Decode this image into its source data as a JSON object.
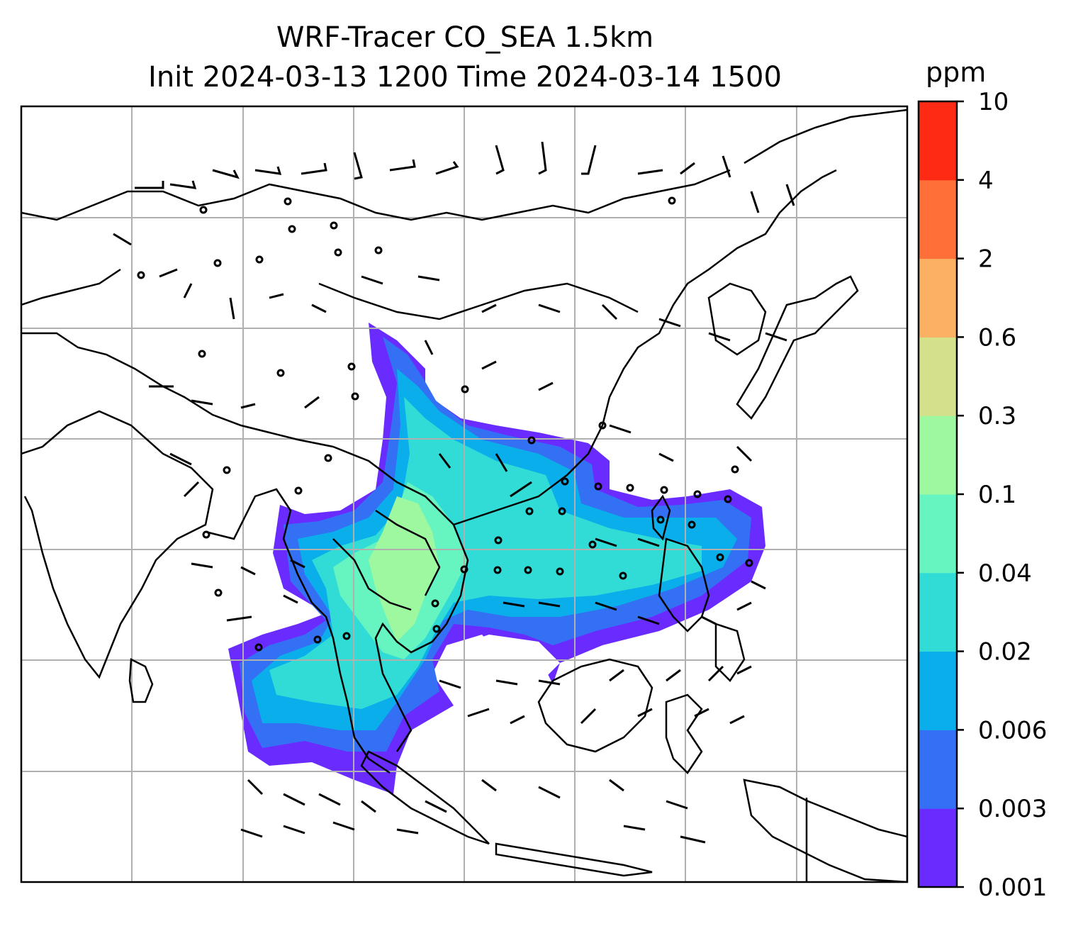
{
  "title": {
    "line1": "WRF-Tracer CO_SEA 1.5km",
    "line2": "Init 2024-03-13 1200 Time 2024-03-14 1500"
  },
  "colorbar": {
    "unit": "ppm",
    "levels": [
      "0.001",
      "0.003",
      "0.006",
      "0.02",
      "0.04",
      "0.1",
      "0.3",
      "0.6",
      "2",
      "4",
      "10"
    ],
    "colors": [
      "#6a2bff",
      "#3470f4",
      "#0aaeea",
      "#31dcd6",
      "#66f4c0",
      "#9ef8a0",
      "#d4e08a",
      "#fbb064",
      "#ff7038",
      "#ff2a14"
    ]
  },
  "map": {
    "features": [
      "coastlines",
      "country-borders",
      "lat-lon-gridlines",
      "wind-barbs",
      "tracer-concentration-shading"
    ],
    "gridline_color": "#b0b0b0",
    "coastline_color": "#000000"
  }
}
